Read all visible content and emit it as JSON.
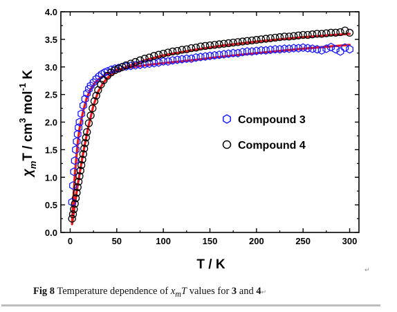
{
  "chart_data": {
    "type": "scatter",
    "ylabel": "χmT / cm3 mol-1 K",
    "ylabel_parts": {
      "sym": "χ",
      "sub": "m",
      "rest": "T / cm",
      "sup1": "3",
      "mid": " mol",
      "sup2": "-1",
      "end": " K"
    },
    "xlabel": "T / K",
    "xlim": [
      -10,
      310
    ],
    "ylim": [
      0.0,
      4.0
    ],
    "xticks": [
      0,
      50,
      100,
      150,
      200,
      250,
      300
    ],
    "yticks": [
      "0.0",
      "0.5",
      "1.0",
      "1.5",
      "2.0",
      "2.5",
      "3.0",
      "3.5",
      "4.0"
    ],
    "legend_position": "center-right",
    "grid": false,
    "series": [
      {
        "name": "Compound 3",
        "marker": "hexagon",
        "color": "#1a1aff",
        "points": [
          [
            2,
            0.55
          ],
          [
            3,
            0.85
          ],
          [
            4,
            1.1
          ],
          [
            5,
            1.3
          ],
          [
            6,
            1.5
          ],
          [
            7,
            1.65
          ],
          [
            8,
            1.78
          ],
          [
            9,
            1.9
          ],
          [
            10,
            2.0
          ],
          [
            12,
            2.15
          ],
          [
            14,
            2.3
          ],
          [
            16,
            2.42
          ],
          [
            18,
            2.52
          ],
          [
            20,
            2.6
          ],
          [
            22,
            2.66
          ],
          [
            25,
            2.72
          ],
          [
            28,
            2.78
          ],
          [
            31,
            2.83
          ],
          [
            34,
            2.87
          ],
          [
            37,
            2.9
          ],
          [
            40,
            2.92
          ],
          [
            44,
            2.95
          ],
          [
            48,
            2.97
          ],
          [
            52,
            2.98
          ],
          [
            56,
            3.0
          ],
          [
            60,
            3.01
          ],
          [
            65,
            3.02
          ],
          [
            70,
            3.03
          ],
          [
            75,
            3.04
          ],
          [
            80,
            3.05
          ],
          [
            85,
            3.06
          ],
          [
            90,
            3.07
          ],
          [
            95,
            3.08
          ],
          [
            100,
            3.1
          ],
          [
            105,
            3.1
          ],
          [
            110,
            3.12
          ],
          [
            115,
            3.13
          ],
          [
            120,
            3.14
          ],
          [
            125,
            3.15
          ],
          [
            130,
            3.15
          ],
          [
            135,
            3.17
          ],
          [
            140,
            3.18
          ],
          [
            145,
            3.19
          ],
          [
            150,
            3.2
          ],
          [
            155,
            3.21
          ],
          [
            160,
            3.22
          ],
          [
            165,
            3.23
          ],
          [
            170,
            3.24
          ],
          [
            175,
            3.25
          ],
          [
            180,
            3.25
          ],
          [
            185,
            3.27
          ],
          [
            190,
            3.28
          ],
          [
            195,
            3.28
          ],
          [
            200,
            3.29
          ],
          [
            205,
            3.3
          ],
          [
            210,
            3.3
          ],
          [
            215,
            3.31
          ],
          [
            220,
            3.32
          ],
          [
            225,
            3.32
          ],
          [
            230,
            3.33
          ],
          [
            235,
            3.33
          ],
          [
            240,
            3.34
          ],
          [
            245,
            3.34
          ],
          [
            250,
            3.35
          ],
          [
            255,
            3.34
          ],
          [
            260,
            3.33
          ],
          [
            265,
            3.32
          ],
          [
            270,
            3.3
          ],
          [
            275,
            3.33
          ],
          [
            280,
            3.36
          ],
          [
            285,
            3.32
          ],
          [
            290,
            3.28
          ],
          [
            295,
            3.35
          ],
          [
            300,
            3.32
          ]
        ]
      },
      {
        "name": "Compound 4",
        "marker": "circle",
        "color": "#000000",
        "points": [
          [
            2,
            0.25
          ],
          [
            3,
            0.33
          ],
          [
            4,
            0.42
          ],
          [
            5,
            0.52
          ],
          [
            6,
            0.62
          ],
          [
            7,
            0.72
          ],
          [
            8,
            0.82
          ],
          [
            9,
            0.92
          ],
          [
            10,
            1.02
          ],
          [
            11,
            1.12
          ],
          [
            12,
            1.22
          ],
          [
            13,
            1.32
          ],
          [
            14,
            1.42
          ],
          [
            15,
            1.52
          ],
          [
            16,
            1.62
          ],
          [
            17,
            1.72
          ],
          [
            18,
            1.82
          ],
          [
            20,
            1.98
          ],
          [
            22,
            2.12
          ],
          [
            24,
            2.25
          ],
          [
            26,
            2.38
          ],
          [
            28,
            2.48
          ],
          [
            30,
            2.58
          ],
          [
            33,
            2.68
          ],
          [
            36,
            2.76
          ],
          [
            40,
            2.84
          ],
          [
            44,
            2.9
          ],
          [
            48,
            2.94
          ],
          [
            52,
            2.97
          ],
          [
            56,
            3.0
          ],
          [
            60,
            3.03
          ],
          [
            65,
            3.06
          ],
          [
            70,
            3.09
          ],
          [
            75,
            3.12
          ],
          [
            80,
            3.15
          ],
          [
            85,
            3.17
          ],
          [
            90,
            3.2
          ],
          [
            95,
            3.22
          ],
          [
            100,
            3.24
          ],
          [
            105,
            3.26
          ],
          [
            110,
            3.28
          ],
          [
            115,
            3.29
          ],
          [
            120,
            3.31
          ],
          [
            125,
            3.32
          ],
          [
            130,
            3.34
          ],
          [
            135,
            3.35
          ],
          [
            140,
            3.37
          ],
          [
            145,
            3.38
          ],
          [
            150,
            3.39
          ],
          [
            155,
            3.4
          ],
          [
            160,
            3.41
          ],
          [
            165,
            3.42
          ],
          [
            170,
            3.43
          ],
          [
            175,
            3.44
          ],
          [
            180,
            3.45
          ],
          [
            185,
            3.46
          ],
          [
            190,
            3.47
          ],
          [
            195,
            3.48
          ],
          [
            200,
            3.49
          ],
          [
            205,
            3.5
          ],
          [
            210,
            3.51
          ],
          [
            215,
            3.52
          ],
          [
            220,
            3.53
          ],
          [
            225,
            3.54
          ],
          [
            230,
            3.55
          ],
          [
            235,
            3.55
          ],
          [
            240,
            3.56
          ],
          [
            245,
            3.57
          ],
          [
            250,
            3.58
          ],
          [
            255,
            3.58
          ],
          [
            260,
            3.59
          ],
          [
            265,
            3.6
          ],
          [
            270,
            3.6
          ],
          [
            275,
            3.61
          ],
          [
            280,
            3.62
          ],
          [
            285,
            3.62
          ],
          [
            290,
            3.63
          ],
          [
            295,
            3.66
          ],
          [
            300,
            3.62
          ]
        ]
      }
    ],
    "fits": [
      {
        "color": "#e8191c",
        "points": [
          [
            2,
            0.18
          ],
          [
            5,
            1.05
          ],
          [
            8,
            1.6
          ],
          [
            10,
            1.88
          ],
          [
            14,
            2.2
          ],
          [
            18,
            2.45
          ],
          [
            22,
            2.6
          ],
          [
            27,
            2.72
          ],
          [
            32,
            2.8
          ],
          [
            40,
            2.88
          ],
          [
            50,
            2.95
          ],
          [
            60,
            2.98
          ],
          [
            80,
            3.03
          ],
          [
            100,
            3.07
          ],
          [
            130,
            3.12
          ],
          [
            160,
            3.18
          ],
          [
            200,
            3.25
          ],
          [
            250,
            3.33
          ],
          [
            300,
            3.4
          ]
        ]
      },
      {
        "color": "#e8191c",
        "points": [
          [
            2,
            0.15
          ],
          [
            5,
            0.5
          ],
          [
            8,
            0.85
          ],
          [
            10,
            1.05
          ],
          [
            13,
            1.35
          ],
          [
            16,
            1.62
          ],
          [
            20,
            1.95
          ],
          [
            25,
            2.3
          ],
          [
            30,
            2.55
          ],
          [
            35,
            2.7
          ],
          [
            40,
            2.8
          ],
          [
            50,
            2.93
          ],
          [
            60,
            3.0
          ],
          [
            80,
            3.12
          ],
          [
            100,
            3.21
          ],
          [
            130,
            3.3
          ],
          [
            160,
            3.38
          ],
          [
            200,
            3.46
          ],
          [
            250,
            3.54
          ],
          [
            300,
            3.6
          ]
        ]
      }
    ]
  },
  "caption": {
    "label": "Fig 8",
    "text1": " Temperature  dependence  of ",
    "var_sym": "x",
    "var_sub": "m",
    "var_T": "T",
    "text2": " values for ",
    "c3": "3",
    "text3": " and ",
    "c4": "4",
    "mark": "↵"
  }
}
